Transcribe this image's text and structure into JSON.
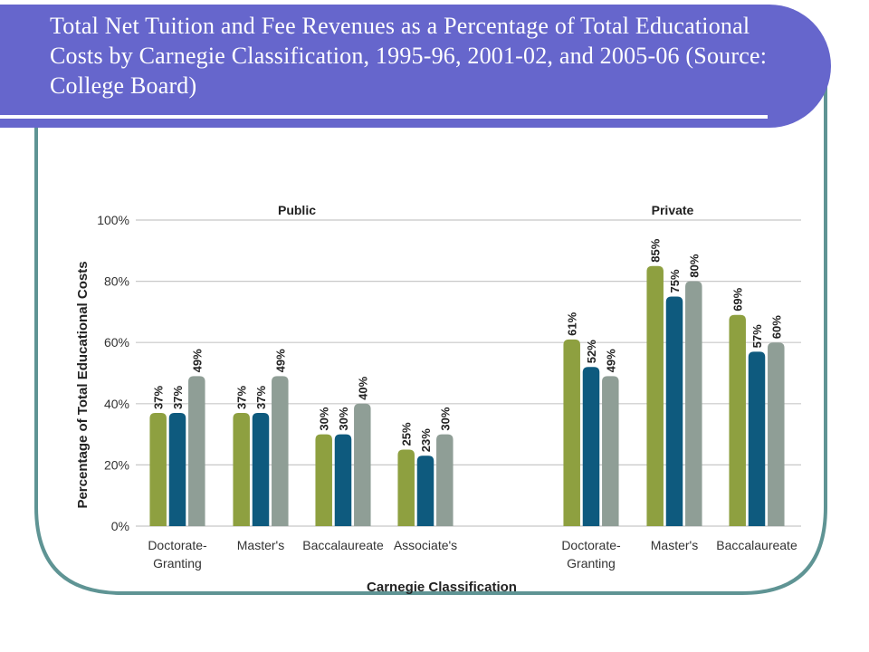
{
  "slide": {
    "title": "Total Net Tuition and Fee Revenues as a Percentage of Total Educational Costs by Carnegie Classification, 1995-96, 2001-02, and 2005-06 (Source: College Board)"
  },
  "colors": {
    "banner": "#6666cc",
    "frame": "#5f9494",
    "series_1995_96": "#8ea040",
    "series_2001_02": "#0e5a7e",
    "series_2005_06": "#8f9e96",
    "grid": "#c8c8c8",
    "text": "#333333"
  },
  "chart_data": {
    "type": "bar",
    "xlabel": "Carnegie Classification",
    "ylabel": "Percentage of Total Educational Costs",
    "ylim": [
      0,
      100
    ],
    "yticks": [
      "0%",
      "20%",
      "40%",
      "60%",
      "80%",
      "100%"
    ],
    "grid": true,
    "groups": [
      {
        "label": "Public",
        "categories": [
          "Doctorate-\nGranting",
          "Master's",
          "Baccalaureate",
          "Associate's"
        ]
      },
      {
        "label": "Private",
        "categories": [
          "Doctorate-\nGranting",
          "Master's",
          "Baccalaureate"
        ]
      }
    ],
    "categories": [
      "Doctorate-Granting",
      "Master's",
      "Baccalaureate",
      "Associate's",
      "Doctorate-Granting",
      "Master's",
      "Baccalaureate"
    ],
    "series": [
      {
        "values": [
          37,
          37,
          30,
          25,
          61,
          85,
          69
        ],
        "labels": [
          "37%",
          "37%",
          "30%",
          "25%",
          "61%",
          "85%",
          "69%"
        ]
      },
      {
        "values": [
          37,
          37,
          30,
          23,
          52,
          75,
          57
        ],
        "labels": [
          "37%",
          "37%",
          "30%",
          "23%",
          "52%",
          "75%",
          "57%"
        ]
      },
      {
        "values": [
          49,
          49,
          40,
          30,
          49,
          80,
          60
        ],
        "labels": [
          "49%",
          "49%",
          "40%",
          "30%",
          "49%",
          "80%",
          "60%"
        ]
      }
    ]
  }
}
